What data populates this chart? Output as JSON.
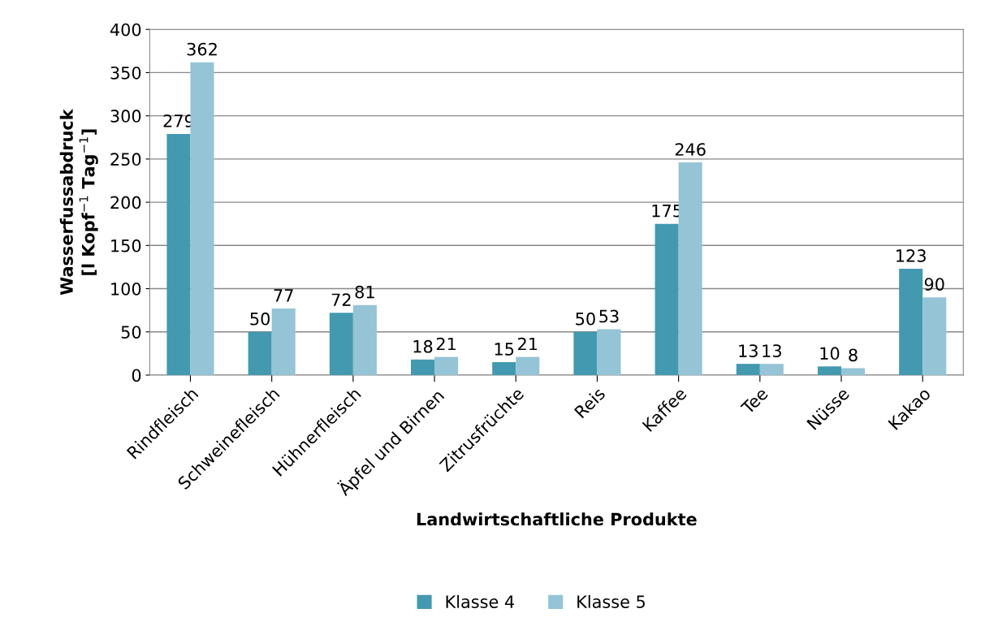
{
  "chart_data": {
    "type": "bar",
    "xlabel": "Landwirtschaftliche Produkte",
    "ylabel": "Wasserfussabdruck\n[l Kopf$^{−1}$ Tag$^{−1}$]",
    "categories": [
      "Rindfleisch",
      "Schweinefleisch",
      "Hühnerfleisch",
      "Äpfel und Birnen",
      "Zitrusfrüchte",
      "Reis",
      "Kaffee",
      "Tee",
      "Nüsse",
      "Kakao"
    ],
    "series": [
      {
        "name": "Klasse 4",
        "color": "#4399b0",
        "values": [
          279,
          50,
          72,
          18,
          15,
          50,
          175,
          13,
          10,
          123
        ]
      },
      {
        "name": "Klasse 5",
        "color": "#94c4d5",
        "values": [
          362,
          77,
          81,
          21,
          21,
          53,
          246,
          13,
          8,
          90
        ]
      }
    ],
    "ylim": [
      0,
      400
    ],
    "yticks": [
      0,
      50,
      100,
      150,
      200,
      250,
      300,
      350,
      400
    ],
    "grid": "y",
    "legend": "bottom",
    "data_labels": true
  }
}
